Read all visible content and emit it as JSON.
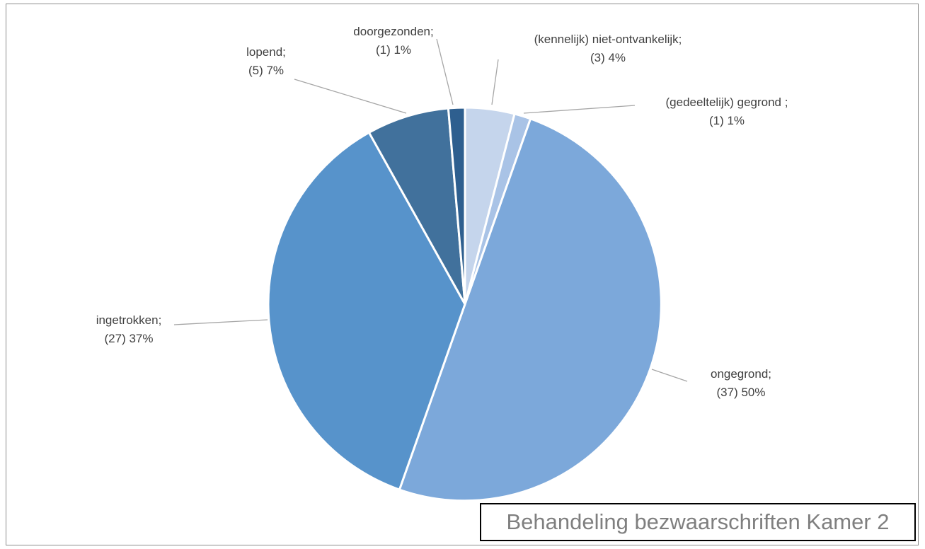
{
  "chart_data": {
    "type": "pie",
    "title": "Behandeling bezwaarschriften Kamer 2",
    "slices": [
      {
        "name": "(kennelijk) niet-ontvankelijk",
        "count": 3,
        "percent": 4,
        "label_line1": "(kennelijk) niet-ontvankelijk;",
        "label_line2": "(3) 4%",
        "color": "#c5d5ec"
      },
      {
        "name": "(gedeeltelijk) gegrond",
        "count": 1,
        "percent": 1,
        "label_line1": "(gedeeltelijk) gegrond ;",
        "label_line2": "(1) 1%",
        "color": "#a9c3e6"
      },
      {
        "name": "ongegrond",
        "count": 37,
        "percent": 50,
        "label_line1": "ongegrond;",
        "label_line2": "(37) 50%",
        "color": "#7ca8da"
      },
      {
        "name": "ingetrokken",
        "count": 27,
        "percent": 37,
        "label_line1": "ingetrokken;",
        "label_line2": "(27) 37%",
        "color": "#5793cb"
      },
      {
        "name": "lopend",
        "count": 5,
        "percent": 7,
        "label_line1": "lopend;",
        "label_line2": "(5) 7%",
        "color": "#41719c"
      },
      {
        "name": "doorgezonden",
        "count": 1,
        "percent": 1,
        "label_line1": "doorgezonden;",
        "label_line2": "(1) 1%",
        "color": "#2e5f8f"
      }
    ],
    "legend": "none",
    "leader_line_color": "#a6a6a6"
  }
}
